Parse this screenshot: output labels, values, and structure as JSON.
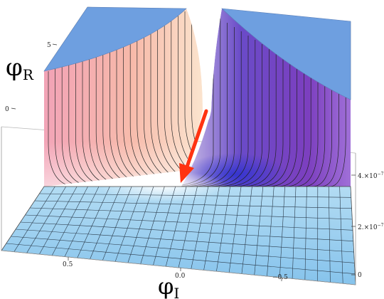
{
  "chart_data": {
    "type": "surface3d",
    "axes": {
      "phi_R": {
        "label": "φ",
        "subscript": "R",
        "ticks": [
          "0",
          "5"
        ]
      },
      "phi_I": {
        "label": "φ",
        "subscript": "I",
        "ticks": [
          "0.5",
          "0.0",
          "−0.5"
        ]
      },
      "z": {
        "ticks": [
          {
            "mantissa": "4.",
            "base": "×10",
            "exp": "−7",
            "value": 4e-07
          },
          {
            "mantissa": "2.",
            "base": "×10",
            "exp": "−7",
            "value": 2e-07
          },
          {
            "mantissa": "0",
            "base": "",
            "exp": "",
            "value": 0
          }
        ]
      }
    },
    "surface": {
      "description_kind": "potential well with peak along phi_I = 0 ridge, clipped plateau at top",
      "flat_floor_level": 0,
      "clipped_top": true
    },
    "annotation": {
      "kind": "arrow",
      "color": "#ff3311"
    },
    "colors": {
      "floor": "#8ec9ee",
      "left_wall": "#f59aae",
      "mid_wall": "#f6c8a0",
      "right_wall": "#7a3fbf",
      "plateau": "#6e9fe0",
      "arrow": "#ff3311"
    }
  }
}
